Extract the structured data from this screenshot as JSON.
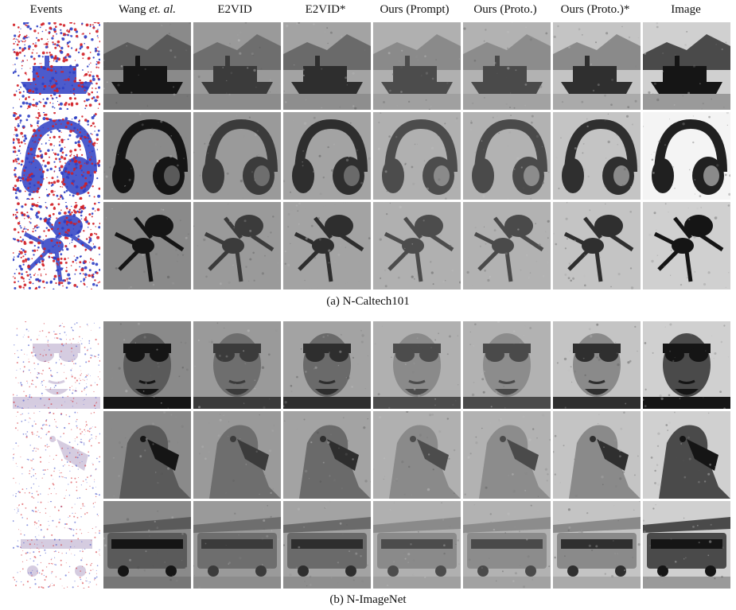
{
  "columns": [
    {
      "label": "Events",
      "suffix": ""
    },
    {
      "label": "Wang ",
      "suffix": "et. al."
    },
    {
      "label": "E2VID",
      "suffix": ""
    },
    {
      "label": "E2VID*",
      "suffix": ""
    },
    {
      "label": "Ours (Prompt)",
      "suffix": ""
    },
    {
      "label": "Ours (Proto.)",
      "suffix": ""
    },
    {
      "label": "Ours (Proto.)*",
      "suffix": ""
    },
    {
      "label": "Image",
      "suffix": ""
    }
  ],
  "sections": [
    {
      "caption": "(a) N-Caltech101",
      "rows": [
        "boat",
        "headphones",
        "ant"
      ]
    },
    {
      "caption": "(b) N-ImageNet",
      "rows": [
        "face",
        "vulture",
        "bus"
      ]
    }
  ],
  "colors": {
    "event_red": "#d11f26",
    "event_blue": "#2d3fc4",
    "background": "#ffffff"
  }
}
